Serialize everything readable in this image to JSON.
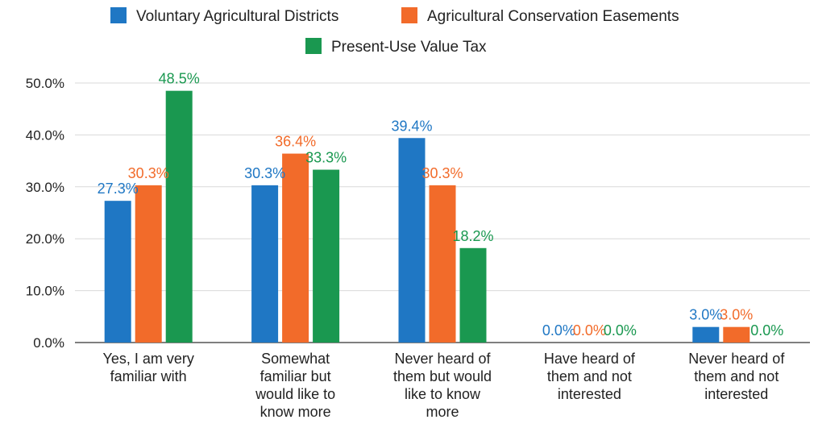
{
  "chart_data": {
    "type": "bar",
    "title": "",
    "xlabel": "",
    "ylabel": "",
    "ylim": [
      0,
      50
    ],
    "y_ticks": [
      "0.0%",
      "10.0%",
      "20.0%",
      "30.0%",
      "40.0%",
      "50.0%"
    ],
    "grid": true,
    "legend_position": "top-center",
    "categories": [
      [
        "Yes, I am very",
        "familiar with"
      ],
      [
        "Somewhat",
        "familiar but",
        "would like to",
        "know more"
      ],
      [
        "Never heard of",
        "them but would",
        "like to know",
        "more"
      ],
      [
        "Have heard of",
        "them and not",
        "interested"
      ],
      [
        "Never heard of",
        "them and not",
        "interested"
      ]
    ],
    "series": [
      {
        "name": "Voluntary Agricultural Districts",
        "color": "#1f77c4",
        "values": [
          27.3,
          30.3,
          39.4,
          0.0,
          3.0
        ],
        "labels": [
          "27.3%",
          "30.3%",
          "39.4%",
          "0.0%",
          "3.0%"
        ]
      },
      {
        "name": "Agricultural Conservation Easements",
        "color": "#f26b2a",
        "values": [
          30.3,
          36.4,
          30.3,
          0.0,
          3.0
        ],
        "labels": [
          "30.3%",
          "36.4%",
          "30.3%",
          "0.0%",
          "3.0%"
        ]
      },
      {
        "name": "Present-Use Value Tax",
        "color": "#1a9850",
        "values": [
          48.5,
          33.3,
          18.2,
          0.0,
          0.0
        ],
        "labels": [
          "48.5%",
          "33.3%",
          "18.2%",
          "0.0%",
          "0.0%"
        ]
      }
    ]
  }
}
